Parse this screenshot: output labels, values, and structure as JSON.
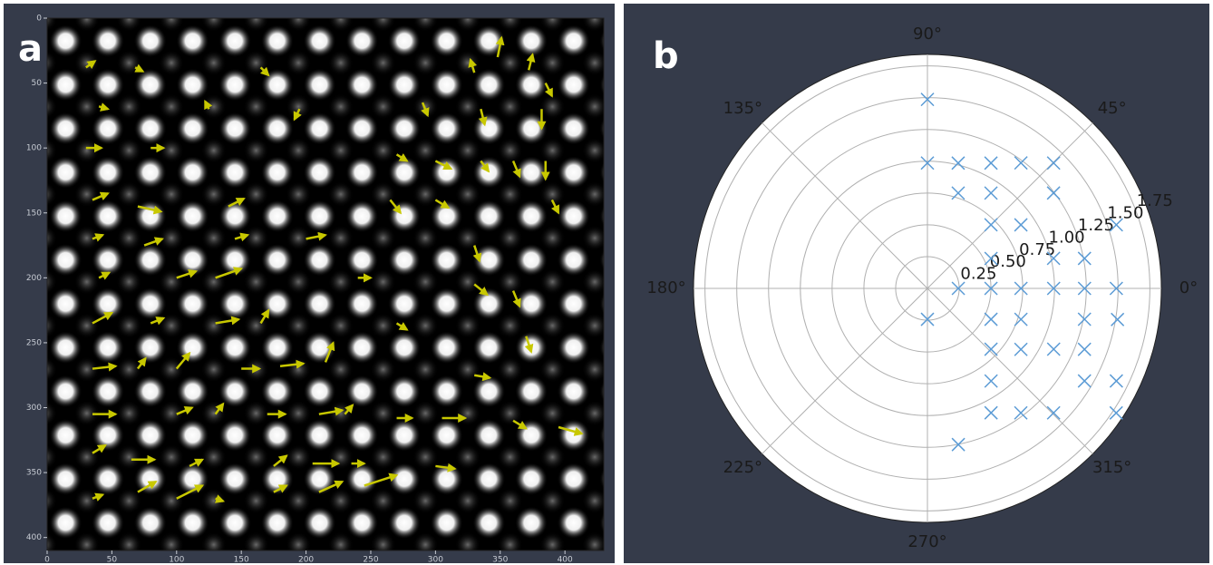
{
  "chart_data": [
    {
      "type": "quiver",
      "panel_label": "a",
      "xlim": [
        0,
        430
      ],
      "ylim": [
        410,
        0
      ],
      "xticks": [
        0,
        50,
        100,
        150,
        200,
        250,
        300,
        350,
        400
      ],
      "yticks": [
        0,
        50,
        100,
        150,
        200,
        250,
        300,
        350,
        400
      ],
      "color": "#c8c800",
      "x": [
        30,
        68,
        165,
        330,
        348,
        372,
        385,
        40,
        125,
        195,
        290,
        335,
        382,
        30,
        80,
        270,
        300,
        335,
        360,
        385,
        35,
        70,
        140,
        265,
        300,
        390,
        35,
        75,
        145,
        200,
        330,
        40,
        100,
        130,
        240,
        330,
        360,
        35,
        80,
        130,
        165,
        270,
        370,
        35,
        70,
        100,
        150,
        180,
        215,
        330,
        35,
        100,
        130,
        170,
        210,
        230,
        270,
        305,
        360,
        395,
        35,
        65,
        110,
        175,
        205,
        235,
        300,
        35,
        70,
        100,
        130,
        175,
        210,
        245
      ],
      "y": [
        38,
        38,
        38,
        42,
        30,
        40,
        50,
        68,
        70,
        70,
        65,
        70,
        70,
        100,
        100,
        105,
        110,
        110,
        110,
        110,
        140,
        145,
        145,
        140,
        140,
        140,
        170,
        175,
        170,
        170,
        175,
        200,
        200,
        200,
        200,
        205,
        210,
        235,
        235,
        235,
        235,
        235,
        245,
        270,
        270,
        270,
        270,
        268,
        265,
        275,
        305,
        305,
        305,
        305,
        305,
        305,
        308,
        308,
        310,
        315,
        335,
        340,
        345,
        345,
        343,
        343,
        345,
        370,
        365,
        370,
        370,
        365,
        365,
        360
      ],
      "u": [
        7,
        6,
        6,
        -3,
        3,
        3,
        5,
        7,
        -3,
        -4,
        4,
        3,
        0,
        12,
        10,
        8,
        12,
        6,
        5,
        0,
        12,
        18,
        12,
        8,
        10,
        5,
        8,
        14,
        10,
        15,
        4,
        8,
        15,
        20,
        10,
        10,
        5,
        15,
        10,
        18,
        6,
        8,
        4,
        18,
        6,
        10,
        14,
        18,
        6,
        12,
        18,
        12,
        6,
        14,
        18,
        6,
        12,
        18,
        10,
        18,
        10,
        18,
        10,
        10,
        20,
        10,
        15,
        8,
        14,
        20,
        6,
        10,
        18,
        25
      ],
      "v": [
        -5,
        3,
        6,
        -10,
        -15,
        -12,
        10,
        2,
        -6,
        8,
        10,
        12,
        15,
        0,
        0,
        5,
        6,
        8,
        12,
        14,
        -5,
        4,
        -6,
        10,
        6,
        10,
        -3,
        -5,
        -3,
        -3,
        12,
        -4,
        -5,
        -7,
        0,
        8,
        12,
        -8,
        -4,
        -3,
        -10,
        5,
        12,
        -2,
        -8,
        -12,
        0,
        -2,
        -15,
        2,
        0,
        -5,
        -8,
        0,
        -3,
        -7,
        0,
        0,
        6,
        5,
        -6,
        0,
        -5,
        -8,
        0,
        0,
        2,
        -3,
        -8,
        -10,
        2,
        -5,
        -8,
        -8
      ]
    },
    {
      "type": "polar-scatter",
      "panel_label": "b",
      "color": "#5b9bd5",
      "rlim": [
        0,
        1.84
      ],
      "rticks": [
        0.25,
        {
          "value": 0.5,
          "label": "0.50"
        },
        0.75,
        {
          "value": 1,
          "label": "1.00"
        },
        1.25,
        {
          "value": 1.5,
          "label": "1.50"
        },
        1.75
      ],
      "thetaticks": [
        {
          "value": 0,
          "label": "0°"
        },
        {
          "value": 45,
          "label": "45°"
        },
        {
          "value": 90,
          "label": "90°"
        },
        {
          "value": 135,
          "label": "135°"
        },
        {
          "value": 180,
          "label": "180°"
        },
        {
          "value": 225,
          "label": "225°"
        },
        {
          "value": 270,
          "label": "270°"
        },
        {
          "value": 315,
          "label": "315°"
        }
      ],
      "theta": [
        90,
        90,
        76.2,
        63.1,
        53.3,
        44.8,
        72.1,
        56.3,
        37.1,
        45,
        34.2,
        18.6,
        25.2,
        13.4,
        10.8,
        0,
        0,
        0,
        0,
        0,
        0,
        270,
        334.1,
        341.7,
        348.9,
        350.7,
        316.3,
        326.9,
        334.3,
        338.8,
        304.5,
        329.5,
        333.9,
        297.1,
        306.9,
        315.4,
        326.6,
        281.2
      ],
      "r": [
        1.486,
        0.986,
        1.015,
        1.105,
        1.231,
        1.399,
        0.788,
        0.901,
        1.244,
        0.707,
        0.889,
        1.568,
        0.553,
        1.02,
        1.258,
        0.243,
        0.5,
        0.736,
        0.993,
        1.236,
        1.486,
        0.243,
        0.556,
        0.775,
        1.259,
        1.515,
        0.692,
        0.878,
        1.102,
        1.325,
        0.884,
        1.434,
        1.655,
        1.099,
        1.224,
        1.394,
        1.779,
        1.252
      ]
    }
  ]
}
